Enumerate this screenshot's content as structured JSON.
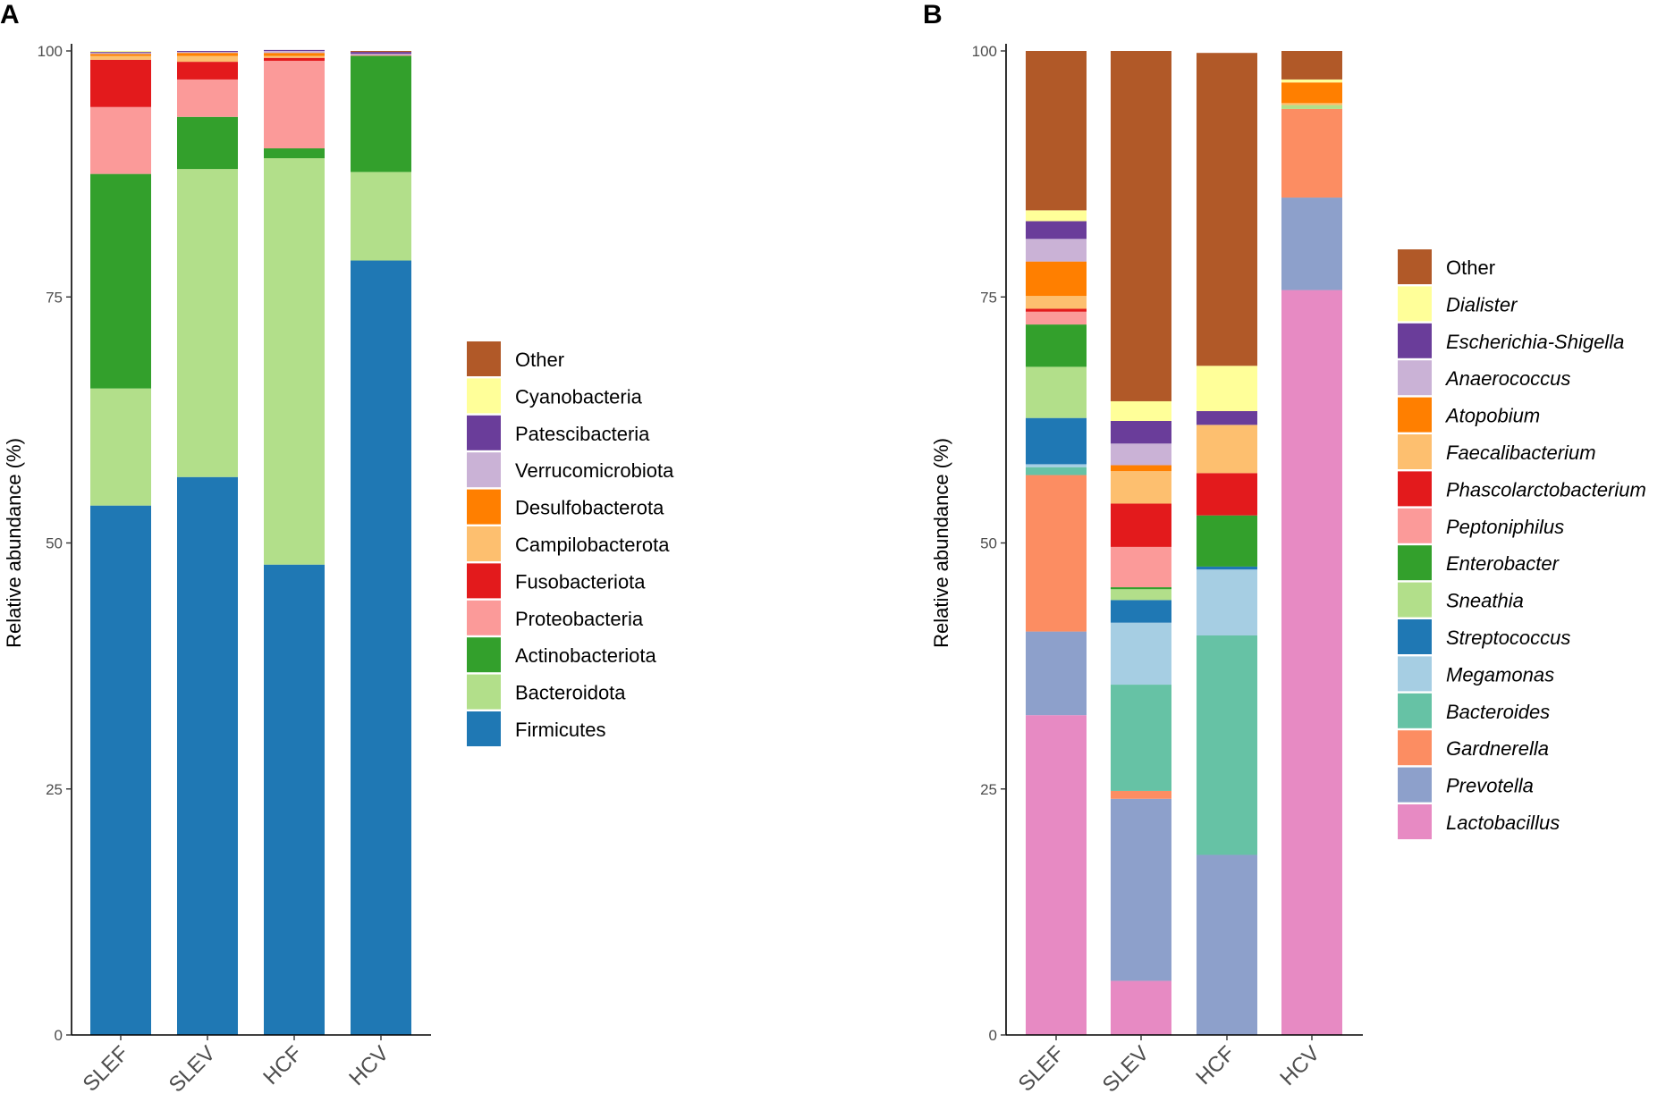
{
  "chart_data": [
    {
      "panel": "A",
      "type": "bar",
      "stacked": true,
      "categories": [
        "SLEF",
        "SLEV",
        "HCF",
        "HCV"
      ],
      "ylabel": "Relative abundance (%)",
      "xlabel": "",
      "ylim": [
        0,
        100
      ],
      "yticks": [
        0,
        25,
        50,
        75,
        100
      ],
      "legend_position": "right",
      "legend_italic": false,
      "series": [
        {
          "name": "Firmicutes",
          "color": "#1f78b4",
          "values": [
            53.8,
            56.7,
            47.8,
            78.7
          ]
        },
        {
          "name": "Bacteroidota",
          "color": "#b2df8a",
          "values": [
            11.9,
            31.3,
            41.3,
            9.0
          ]
        },
        {
          "name": "Actinobacteriota",
          "color": "#33a02c",
          "values": [
            21.8,
            5.3,
            1.0,
            11.8
          ]
        },
        {
          "name": "Proteobacteria",
          "color": "#fb9a99",
          "values": [
            6.8,
            3.8,
            8.9,
            0.1
          ]
        },
        {
          "name": "Fusobacteriota",
          "color": "#e31a1c",
          "values": [
            4.8,
            1.8,
            0.3,
            0.0
          ]
        },
        {
          "name": "Campilobacterota",
          "color": "#fdbf6f",
          "values": [
            0.4,
            0.6,
            0.2,
            0.0
          ]
        },
        {
          "name": "Desulfobacterota",
          "color": "#ff7f00",
          "values": [
            0.2,
            0.3,
            0.3,
            0.0
          ]
        },
        {
          "name": "Verrucomicrobiota",
          "color": "#cab2d6",
          "values": [
            0.1,
            0.1,
            0.2,
            0.1
          ]
        },
        {
          "name": "Patescibacteria",
          "color": "#6a3d9a",
          "values": [
            0.1,
            0.1,
            0.1,
            0.2
          ]
        },
        {
          "name": "Cyanobacteria",
          "color": "#ffff99",
          "values": [
            0.1,
            0.0,
            0.0,
            0.0
          ]
        },
        {
          "name": "Other",
          "color": "#b15928",
          "values": [
            0.0,
            0.0,
            0.0,
            0.1
          ]
        }
      ]
    },
    {
      "panel": "B",
      "type": "bar",
      "stacked": true,
      "categories": [
        "SLEF",
        "SLEV",
        "HCF",
        "HCV"
      ],
      "ylabel": "Relative abundance (%)",
      "xlabel": "",
      "ylim": [
        0,
        100
      ],
      "yticks": [
        0,
        25,
        50,
        75,
        100
      ],
      "legend_position": "right",
      "legend_italic": true,
      "series": [
        {
          "name": "Lactobacillus",
          "color": "#e78ac3",
          "values": [
            32.5,
            5.5,
            0.0,
            75.7
          ]
        },
        {
          "name": "Prevotella",
          "color": "#8da0cb",
          "values": [
            8.5,
            18.5,
            18.3,
            9.4
          ]
        },
        {
          "name": "Gardnerella",
          "color": "#fc8d62",
          "values": [
            15.9,
            0.8,
            0.0,
            9.0
          ]
        },
        {
          "name": "Bacteroides",
          "color": "#66c2a5",
          "values": [
            0.8,
            10.8,
            22.3,
            0.0
          ]
        },
        {
          "name": "Megamonas",
          "color": "#a6cee3",
          "values": [
            0.3,
            6.3,
            6.7,
            0.0
          ]
        },
        {
          "name": "Streptococcus",
          "color": "#1f78b4",
          "values": [
            4.7,
            2.3,
            0.3,
            0.0
          ]
        },
        {
          "name": "Sneathia",
          "color": "#b2df8a",
          "values": [
            5.2,
            1.1,
            0.0,
            0.4
          ]
        },
        {
          "name": "Enterobacter",
          "color": "#33a02c",
          "values": [
            4.3,
            0.2,
            5.2,
            0.0
          ]
        },
        {
          "name": "Peptoniphilus",
          "color": "#fb9a99",
          "values": [
            1.3,
            4.1,
            0.0,
            0.0
          ]
        },
        {
          "name": "Phascolarctobacterium",
          "color": "#e31a1c",
          "values": [
            0.3,
            4.4,
            4.3,
            0.0
          ]
        },
        {
          "name": "Faecalibacterium",
          "color": "#fdbf6f",
          "values": [
            1.3,
            3.3,
            4.9,
            0.2
          ]
        },
        {
          "name": "Atopobium",
          "color": "#ff7f00",
          "values": [
            3.5,
            0.6,
            0.0,
            2.1
          ]
        },
        {
          "name": "Anaerococcus",
          "color": "#cab2d6",
          "values": [
            2.3,
            2.2,
            0.0,
            0.0
          ]
        },
        {
          "name": "Escherichia-Shigella",
          "color": "#6a3d9a",
          "values": [
            1.8,
            2.3,
            1.4,
            0.0
          ]
        },
        {
          "name": "Dialister",
          "color": "#ffff99",
          "values": [
            1.1,
            2.0,
            4.6,
            0.3
          ]
        },
        {
          "name": "Other",
          "color": "#b15928",
          "values": [
            16.2,
            35.6,
            31.8,
            2.9
          ]
        }
      ]
    }
  ]
}
